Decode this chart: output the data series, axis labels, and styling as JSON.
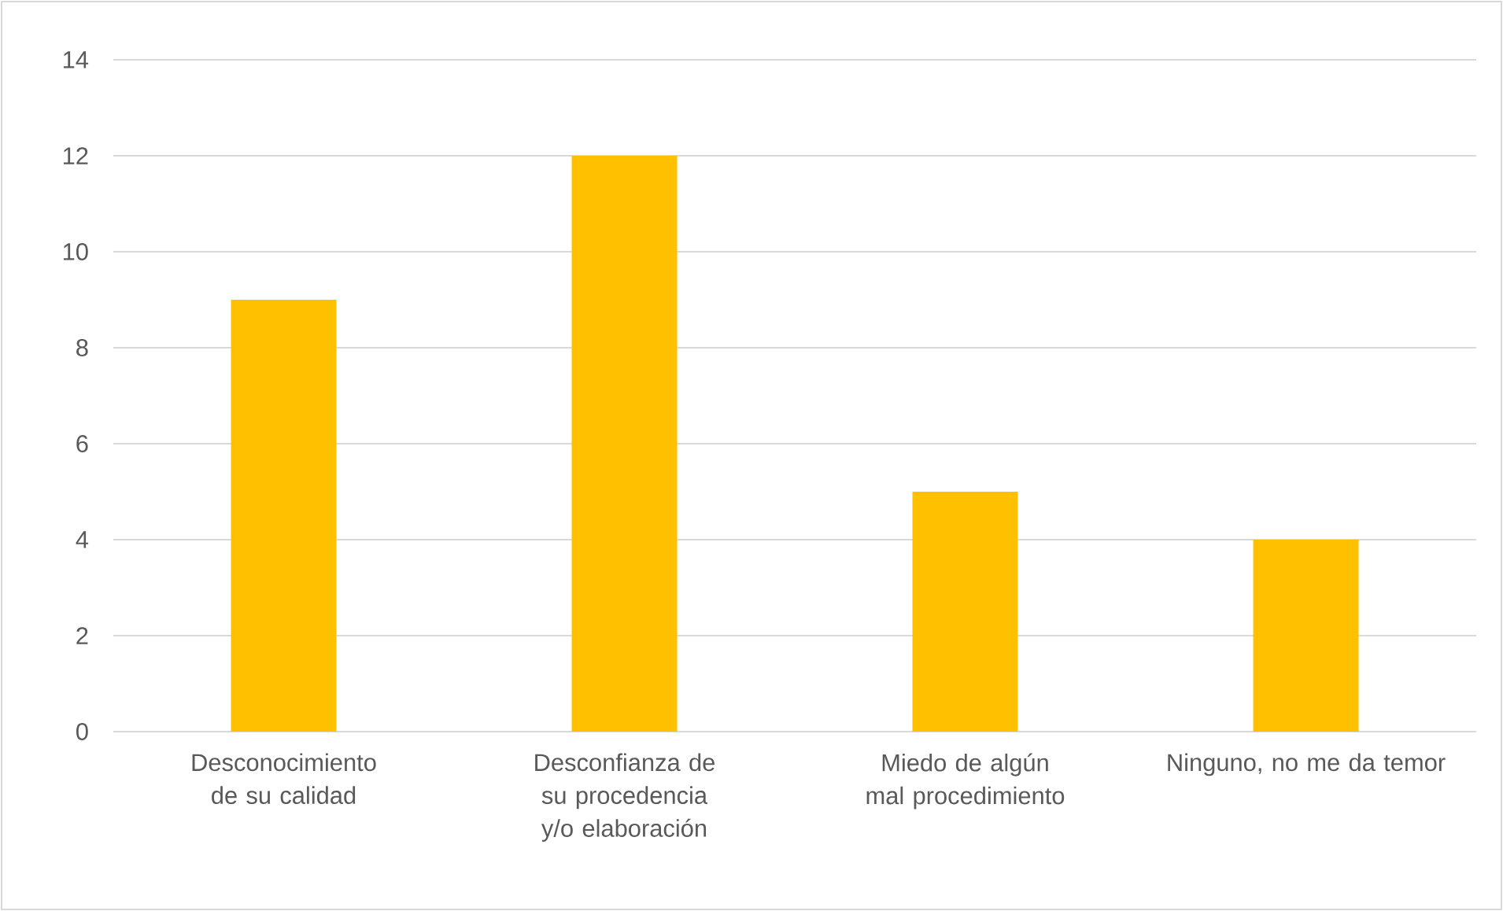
{
  "chart_data": {
    "type": "bar",
    "categories": [
      "Desconocimiento de su calidad",
      "Desconfianza de su procedencia y/o elaboración",
      "Miedo de algún mal procedimiento",
      "Ninguno, no me da temor"
    ],
    "values": [
      9,
      12,
      5,
      4
    ],
    "color": "#ffc000",
    "ylim": [
      0,
      14
    ],
    "yticks": [
      0,
      2,
      4,
      6,
      8,
      10,
      12,
      14
    ],
    "grid": "y"
  }
}
